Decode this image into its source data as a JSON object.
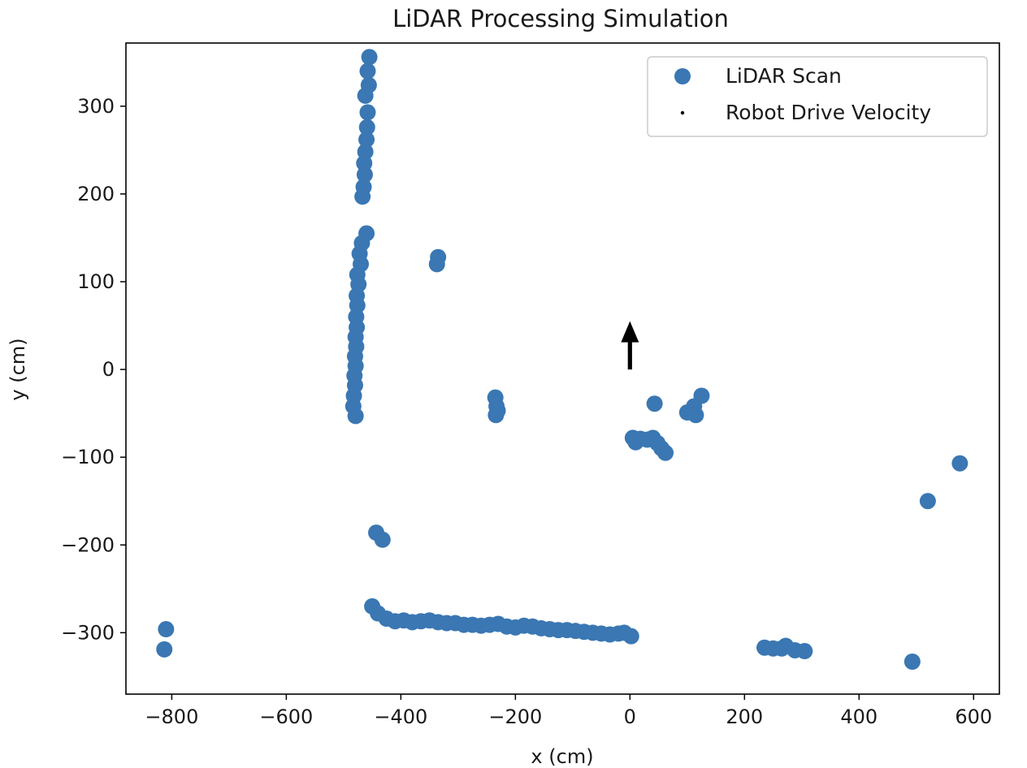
{
  "colors": {
    "scan": "#3a77b3",
    "arrow": "#000000",
    "frame": "#000000"
  },
  "chart_data": {
    "type": "scatter",
    "title": "LiDAR Processing Simulation",
    "xlabel": "x (cm)",
    "ylabel": "y (cm)",
    "xlim": [
      -880,
      645
    ],
    "ylim": [
      -370,
      372
    ],
    "xticks": [
      -800,
      -600,
      -400,
      -200,
      0,
      200,
      400,
      600
    ],
    "yticks": [
      -300,
      -200,
      -100,
      0,
      100,
      200,
      300
    ],
    "xtick_labels": [
      "−800",
      "−600",
      "−400",
      "−200",
      "0",
      "200",
      "400",
      "600"
    ],
    "ytick_labels": [
      "−300",
      "−200",
      "−100",
      "0",
      "100",
      "200",
      "300"
    ],
    "grid": false,
    "legend": {
      "placement": "top-right",
      "entries": [
        {
          "label": "LiDAR Scan",
          "marker": "circle"
        },
        {
          "label": "Robot Drive Velocity",
          "marker": "point"
        }
      ]
    },
    "series": [
      {
        "name": "LiDAR Scan",
        "type": "scatter",
        "points": [
          [
            -455,
            356
          ],
          [
            -458,
            340
          ],
          [
            -456,
            324
          ],
          [
            -462,
            312
          ],
          [
            -458,
            293
          ],
          [
            -459,
            276
          ],
          [
            -460,
            262
          ],
          [
            -462,
            248
          ],
          [
            -464,
            235
          ],
          [
            -463,
            222
          ],
          [
            -465,
            208
          ],
          [
            -467,
            197
          ],
          [
            -460,
            155
          ],
          [
            -468,
            144
          ],
          [
            -472,
            132
          ],
          [
            -470,
            120
          ],
          [
            -476,
            108
          ],
          [
            -474,
            97
          ],
          [
            -477,
            84
          ],
          [
            -476,
            73
          ],
          [
            -478,
            60
          ],
          [
            -477,
            48
          ],
          [
            -479,
            37
          ],
          [
            -478,
            26
          ],
          [
            -480,
            15
          ],
          [
            -479,
            4
          ],
          [
            -481,
            -7
          ],
          [
            -480,
            -18
          ],
          [
            -482,
            -30
          ],
          [
            -483,
            -42
          ],
          [
            -479,
            -53
          ],
          [
            -335,
            128
          ],
          [
            -337,
            120
          ],
          [
            -235,
            -32
          ],
          [
            -233,
            -42
          ],
          [
            -231,
            -47
          ],
          [
            -234,
            -52
          ],
          [
            43,
            -39
          ],
          [
            125,
            -30
          ],
          [
            112,
            -42
          ],
          [
            100,
            -49
          ],
          [
            115,
            -52
          ],
          [
            5,
            -78
          ],
          [
            10,
            -83
          ],
          [
            18,
            -79
          ],
          [
            30,
            -80
          ],
          [
            40,
            -78
          ],
          [
            48,
            -84
          ],
          [
            55,
            -90
          ],
          [
            62,
            -95
          ],
          [
            -443,
            -186
          ],
          [
            -432,
            -194
          ],
          [
            -810,
            -296
          ],
          [
            -813,
            -319
          ],
          [
            -450,
            -270
          ],
          [
            -440,
            -278
          ],
          [
            -425,
            -284
          ],
          [
            -410,
            -287
          ],
          [
            -395,
            -286
          ],
          [
            -380,
            -288
          ],
          [
            -365,
            -287
          ],
          [
            -350,
            -286
          ],
          [
            -335,
            -288
          ],
          [
            -320,
            -289
          ],
          [
            -305,
            -289
          ],
          [
            -290,
            -291
          ],
          [
            -275,
            -291
          ],
          [
            -260,
            -292
          ],
          [
            -245,
            -291
          ],
          [
            -230,
            -290
          ],
          [
            -215,
            -293
          ],
          [
            -200,
            -294
          ],
          [
            -185,
            -292
          ],
          [
            -170,
            -293
          ],
          [
            -155,
            -295
          ],
          [
            -140,
            -296
          ],
          [
            -125,
            -297
          ],
          [
            -110,
            -297
          ],
          [
            -95,
            -298
          ],
          [
            -80,
            -299
          ],
          [
            -65,
            -300
          ],
          [
            -50,
            -301
          ],
          [
            -35,
            -302
          ],
          [
            -20,
            -301
          ],
          [
            -10,
            -300
          ],
          [
            2,
            -304
          ],
          [
            235,
            -317
          ],
          [
            250,
            -318
          ],
          [
            265,
            -318
          ],
          [
            272,
            -315
          ],
          [
            288,
            -320
          ],
          [
            305,
            -321
          ],
          [
            493,
            -333
          ],
          [
            520,
            -150
          ],
          [
            576,
            -107
          ]
        ]
      },
      {
        "name": "Robot Drive Velocity",
        "type": "quiver",
        "origin": [
          0,
          0
        ],
        "vector": [
          0,
          55
        ]
      }
    ]
  }
}
